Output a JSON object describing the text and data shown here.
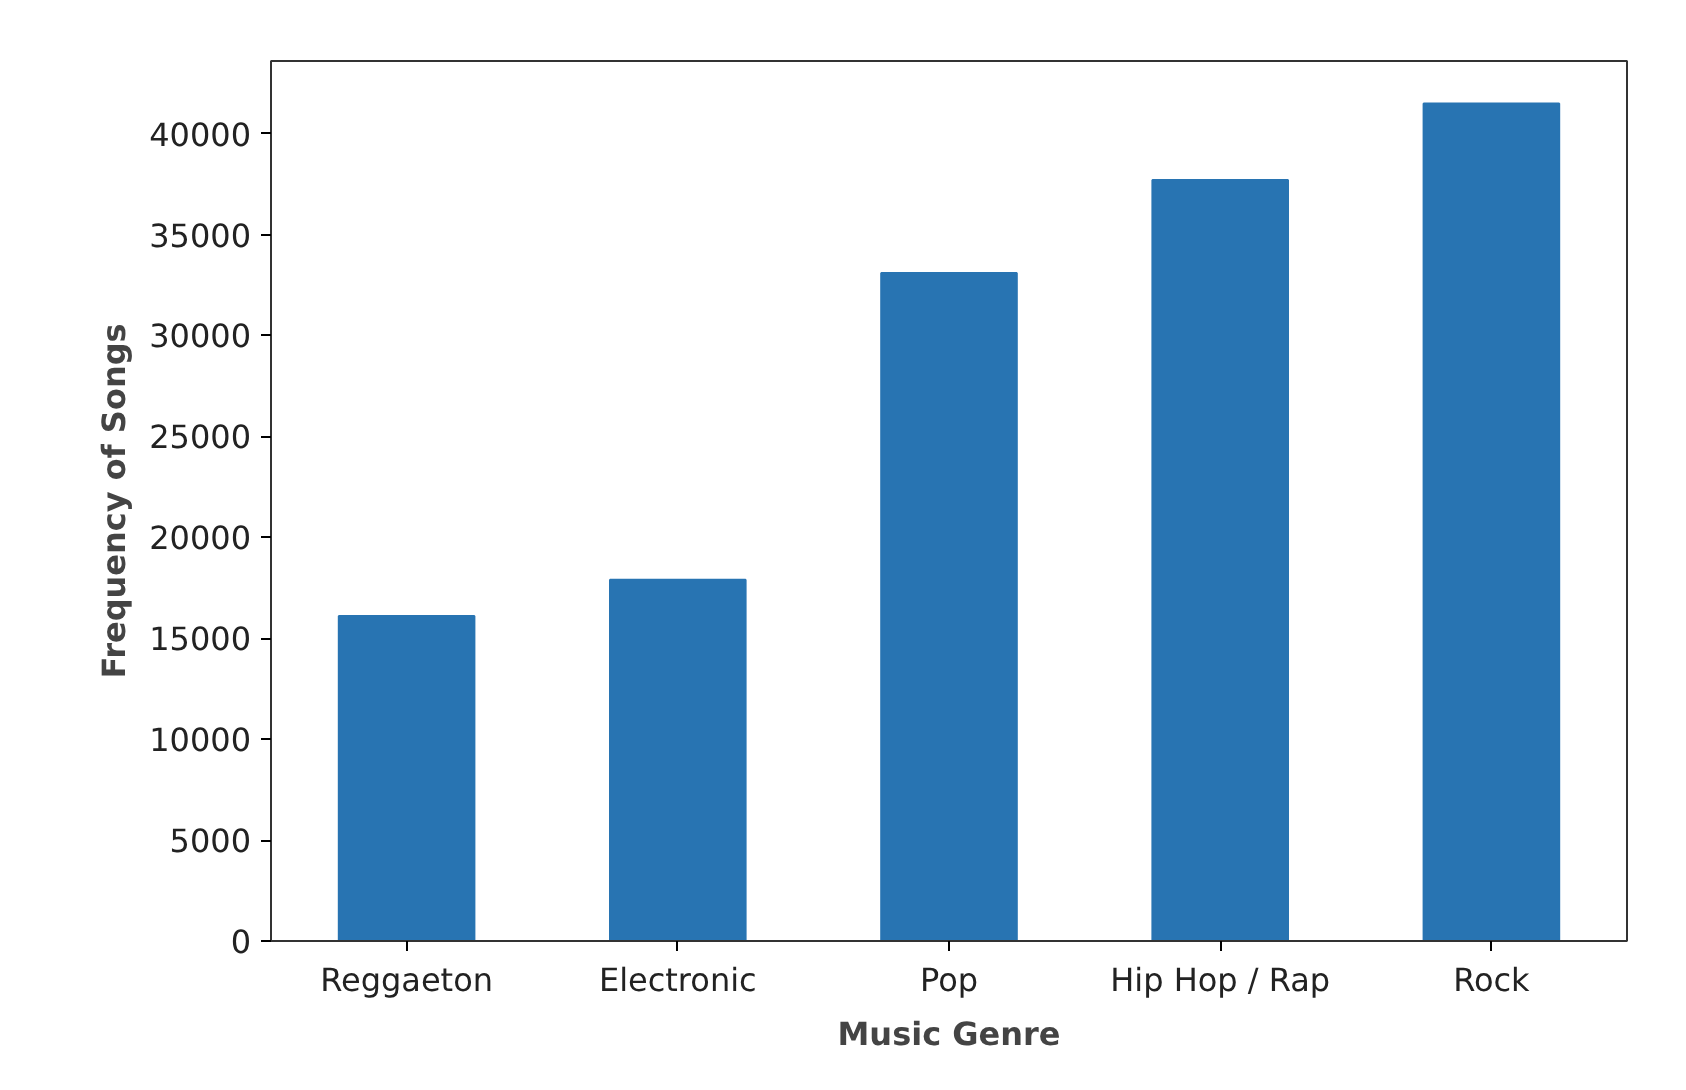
{
  "chart_data": {
    "type": "bar",
    "xlabel": "Music Genre",
    "ylabel": "Frequency of Songs",
    "categories": [
      "Reggaeton",
      "Electronic",
      "Pop",
      "Hip Hop / Rap",
      "Rock"
    ],
    "values": [
      16100,
      17900,
      33100,
      37700,
      41500
    ],
    "color": "#2874b2",
    "ylim": [
      0,
      43600
    ],
    "yticks": [
      0,
      5000,
      10000,
      15000,
      20000,
      25000,
      30000,
      35000,
      40000
    ],
    "grid": false
  }
}
